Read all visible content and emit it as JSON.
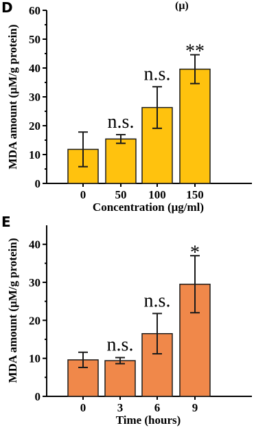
{
  "chart_data": [
    {
      "panel": "D",
      "type": "bar",
      "categories": [
        "0",
        "50",
        "100",
        "150"
      ],
      "values": [
        11.8,
        15.4,
        26.3,
        39.6
      ],
      "errors": [
        6.0,
        1.5,
        7.2,
        5.0
      ],
      "annotations": [
        "",
        "n.s.",
        "n.s.",
        "**"
      ],
      "xlabel": "Concentration (μg/ml)",
      "ylabel": "MDA amount (μM/g protein)",
      "ylim": [
        0,
        60
      ],
      "yticks": [
        "0",
        "10",
        "20",
        "30",
        "40",
        "50",
        "60"
      ],
      "bar_color": "#FFC20E",
      "grid": false,
      "top_label": "(μ)"
    },
    {
      "panel": "E",
      "type": "bar",
      "categories": [
        "0",
        "3",
        "6",
        "9"
      ],
      "values": [
        9.6,
        9.4,
        16.5,
        29.5
      ],
      "errors": [
        2.0,
        0.8,
        5.3,
        7.5
      ],
      "annotations": [
        "",
        "n.s.",
        "n.s.",
        "*"
      ],
      "xlabel": "Time (hours)",
      "ylabel": "MDA amount (μM/g protein)",
      "ylim": [
        0,
        45
      ],
      "yticks": [
        "0",
        "10",
        "20",
        "30",
        "40"
      ],
      "bar_color": "#F0884A",
      "grid": false
    }
  ]
}
